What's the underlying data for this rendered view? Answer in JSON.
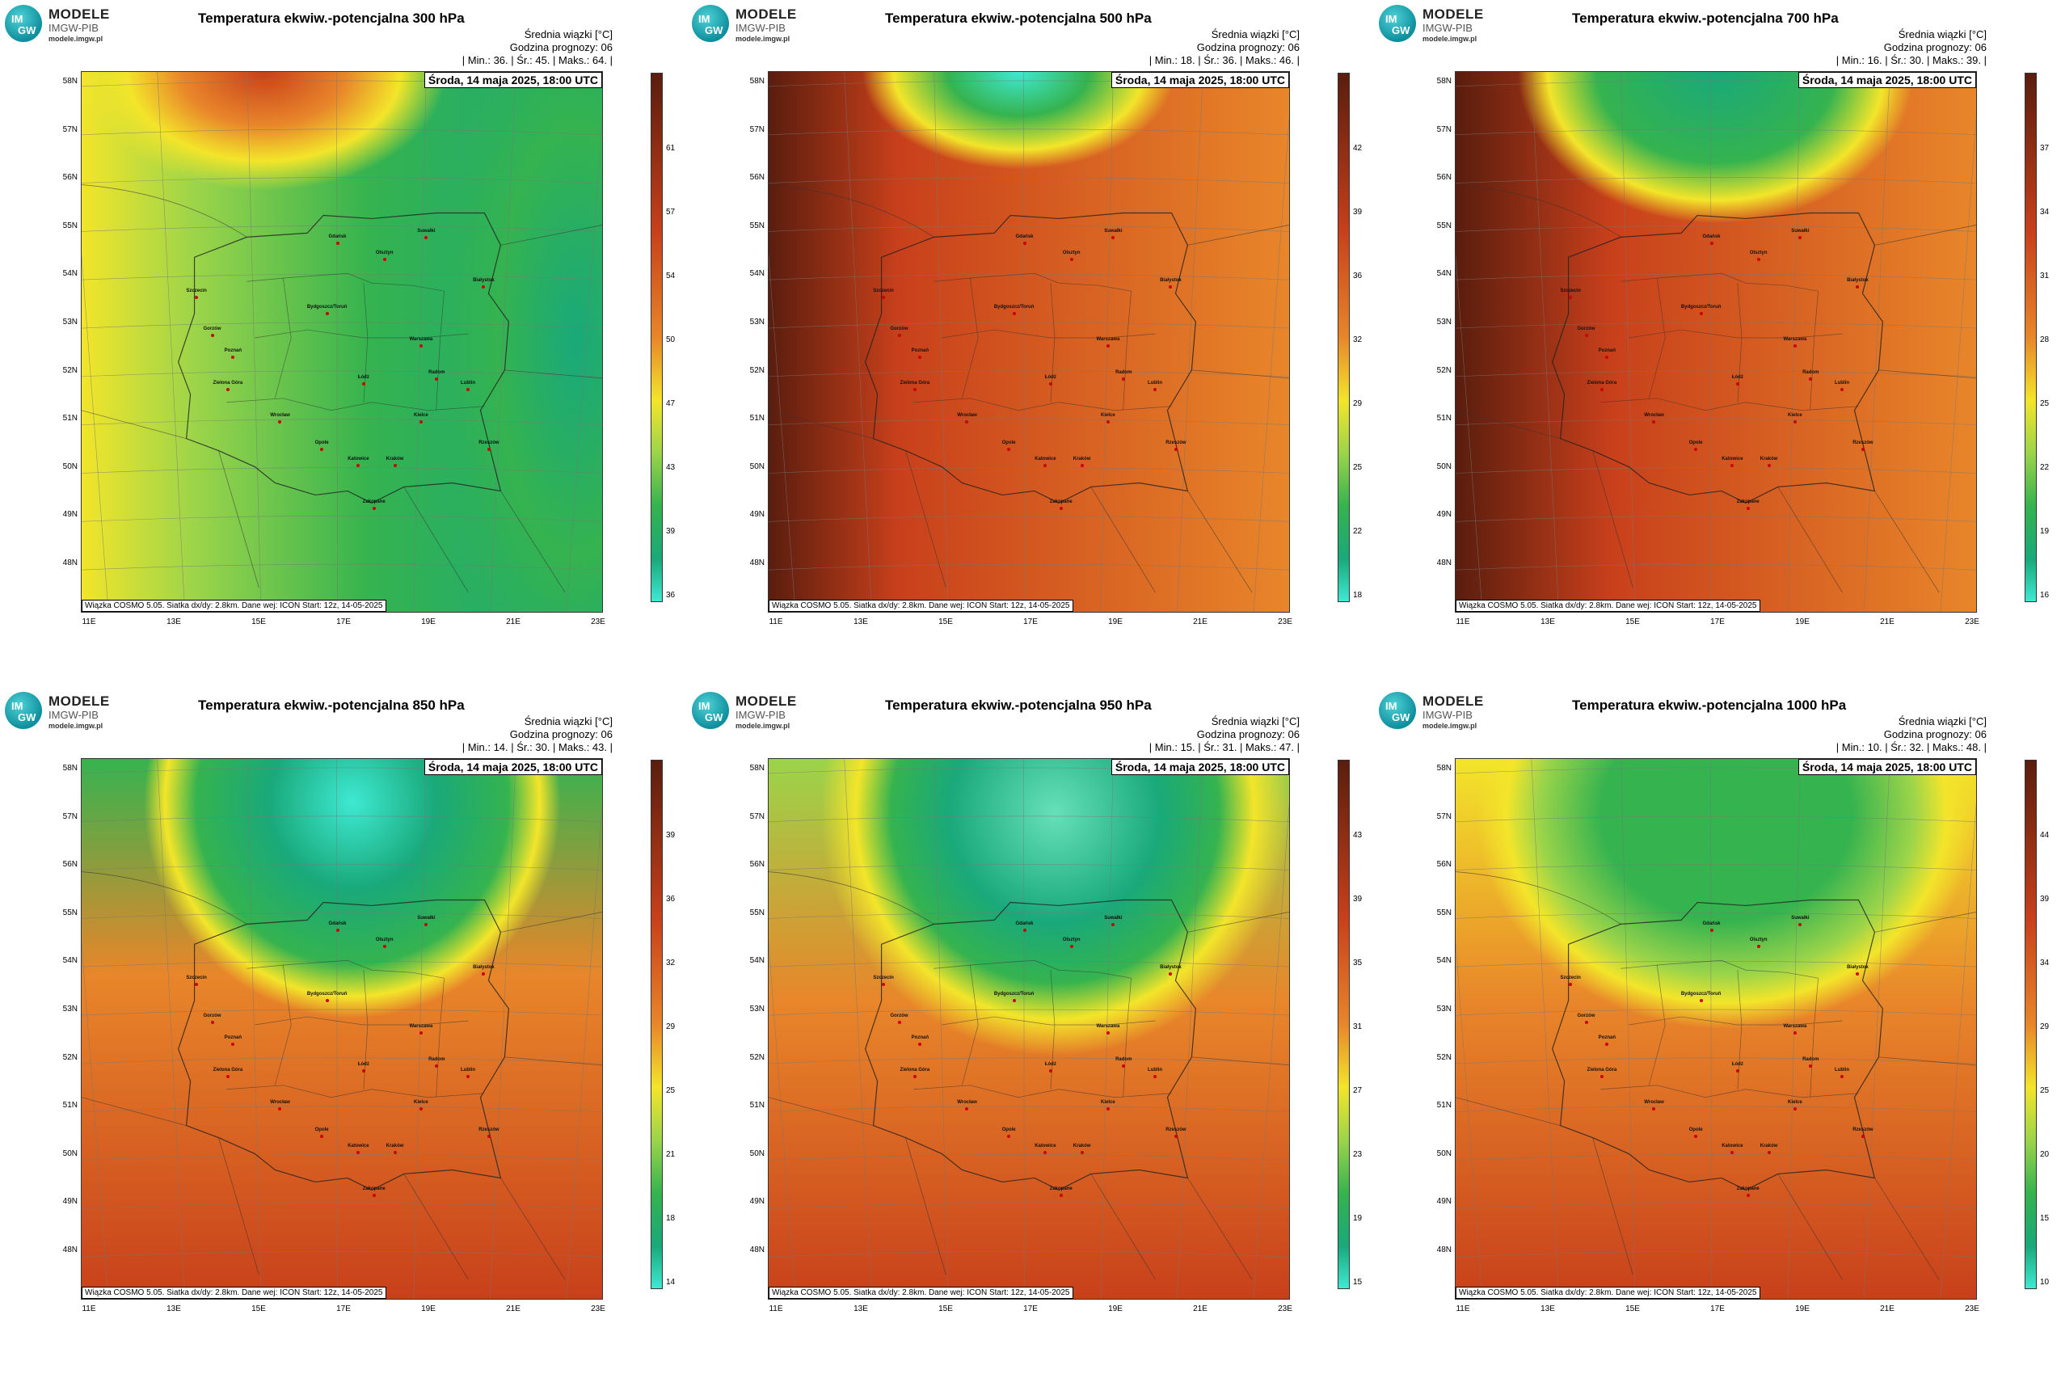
{
  "logo": {
    "line1": "MODELE",
    "line2": "IMGW-PIB",
    "line3": "modele.imgw.pl",
    "badge_top": "IM",
    "badge_bottom": "GW"
  },
  "common": {
    "info_line1": "Średnia wiązki [°C]",
    "info_line2": "Godzina prognozy: 06",
    "date": "Środa, 14 maja 2025, 18:00 UTC",
    "footer": "Wiązka COSMO 5.05. Siatka dx/dy: 2.8km. Dane wej: ICON Start: 12z, 14-05-2025",
    "lat_labels": [
      "58N",
      "57N",
      "56N",
      "55N",
      "54N",
      "53N",
      "52N",
      "51N",
      "50N",
      "49N",
      "48N"
    ],
    "lon_labels": [
      "11E",
      "13E",
      "15E",
      "17E",
      "19E",
      "21E",
      "23E"
    ],
    "cities": [
      "Gdańsk",
      "Olsztyn",
      "Suwałki",
      "Szczecin",
      "Białystok",
      "Bydgoszcz/Toruń",
      "Gorzów",
      "Poznań",
      "Warszawa",
      "Zielona Góra",
      "Łódź",
      "Lublin",
      "Wrocław",
      "Kielce",
      "Opole",
      "Radom",
      "Rzeszów",
      "Katowice",
      "Kraków",
      "Zakopane"
    ]
  },
  "panels": [
    {
      "title": "Temperatura ekwiw.-potencjalna 300 hPa",
      "stats": "| Min.:     36. | Śr.:     45. | Maks.:    64. |",
      "ticks": [
        "61",
        "57",
        "54",
        "50",
        "47",
        "43",
        "39",
        "36"
      ]
    },
    {
      "title": "Temperatura ekwiw.-potencjalna 500 hPa",
      "stats": "| Min.:     18. | Śr.:     36. | Maks.:    46. |",
      "ticks": [
        "42",
        "39",
        "36",
        "32",
        "29",
        "25",
        "22",
        "18"
      ]
    },
    {
      "title": "Temperatura ekwiw.-potencjalna 700 hPa",
      "stats": "| Min.:     16. | Śr.:     30. | Maks.:    39. |",
      "ticks": [
        "37",
        "34",
        "31",
        "28",
        "25",
        "22",
        "19",
        "16"
      ]
    },
    {
      "title": "Temperatura ekwiw.-potencjalna 850 hPa",
      "stats": "| Min.:     14. | Śr.:     30. | Maks.:    43. |",
      "ticks": [
        "39",
        "36",
        "32",
        "29",
        "25",
        "21",
        "18",
        "14"
      ]
    },
    {
      "title": "Temperatura ekwiw.-potencjalna 950 hPa",
      "stats": "| Min.:     15. | Śr.:     31. | Maks.:    47. |",
      "ticks": [
        "43",
        "39",
        "35",
        "31",
        "27",
        "23",
        "19",
        "15"
      ]
    },
    {
      "title": "Temperatura ekwiw.-potencjalna 1000 hPa",
      "stats": "| Min.:     10. | Śr.:     32. | Maks.:    48. |",
      "ticks": [
        "44",
        "39",
        "34",
        "29",
        "25",
        "20",
        "15",
        "10"
      ]
    }
  ],
  "colors": {
    "dark": "#5a1d0e",
    "red": "#c8401b",
    "orange": "#e8862a",
    "yellow": "#f3e52a",
    "lgreen": "#9bd44a",
    "green": "#35b34f",
    "teal": "#19a97a",
    "cyan": "#3ee9d2"
  }
}
